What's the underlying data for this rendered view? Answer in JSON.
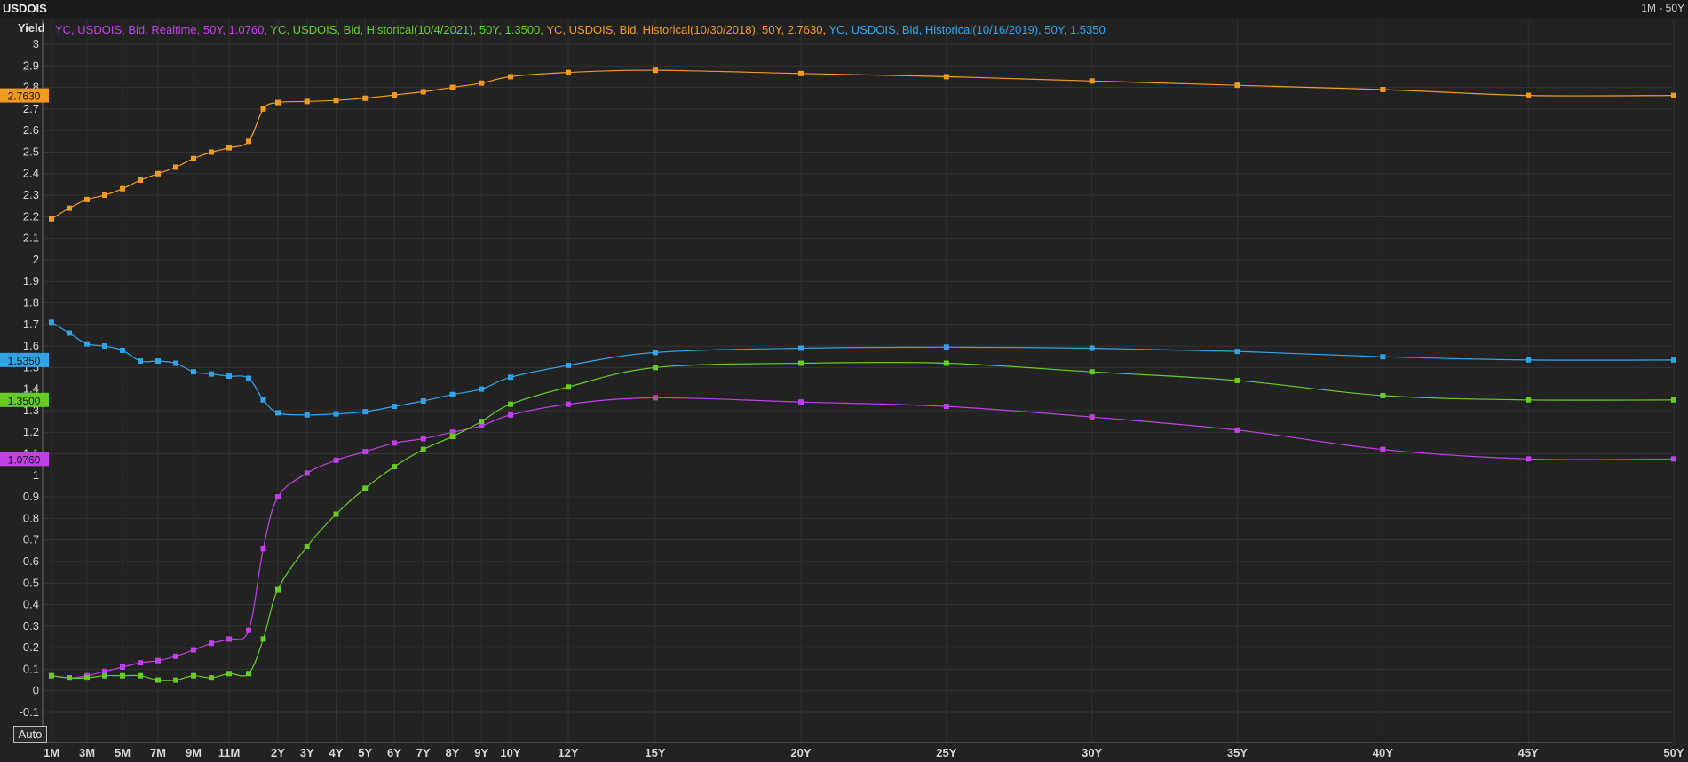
{
  "window": {
    "title": "USDOIS",
    "range_label": "1M - 50Y"
  },
  "controls": {
    "auto_label": "Auto"
  },
  "chart_data": {
    "type": "line",
    "ylabel": "Yield",
    "ylim": [
      -0.1,
      3.0
    ],
    "y_ticks": [
      3,
      2.9,
      2.8,
      2.7,
      2.6,
      2.5,
      2.4,
      2.3,
      2.2,
      2.1,
      2,
      1.9,
      1.8,
      1.7,
      1.6,
      1.5,
      1.4,
      1.3,
      1.2,
      1.1,
      1,
      0.9,
      0.8,
      0.7,
      0.6,
      0.5,
      0.4,
      0.3,
      0.2,
      0.1,
      0,
      -0.1
    ],
    "y_tick_labels": [
      "3",
      "2.9",
      "2.8",
      "2.7",
      "2.6",
      "2.5",
      "2.4",
      "2.3",
      "2.2",
      "2.1",
      "2",
      "1.9",
      "1.8",
      "1.7",
      "1.6",
      "1.5",
      "1.4",
      "1.3",
      "1.2",
      "1.1",
      "1",
      "0.9",
      "0.8",
      "0.7",
      "0.6",
      "0.5",
      "0.4",
      "0.3",
      "0.2",
      "0.1",
      "0",
      "-0.1"
    ],
    "grid": true,
    "x_tick_labels": [
      "1M",
      "3M",
      "5M",
      "7M",
      "9M",
      "11M",
      "2Y",
      "3Y",
      "4Y",
      "5Y",
      "6Y",
      "7Y",
      "8Y",
      "9Y",
      "10Y",
      "12Y",
      "15Y",
      "20Y",
      "25Y",
      "30Y",
      "35Y",
      "40Y",
      "45Y",
      "50Y"
    ],
    "x_tick_years": [
      0.0833,
      0.25,
      0.4167,
      0.5833,
      0.75,
      0.9167,
      2,
      3,
      4,
      5,
      6,
      7,
      8,
      9,
      10,
      12,
      15,
      20,
      25,
      30,
      35,
      40,
      45,
      50
    ],
    "x_points": [
      0.0833,
      0.1667,
      0.25,
      0.3333,
      0.4167,
      0.5,
      0.5833,
      0.6667,
      0.75,
      0.8333,
      0.9167,
      1,
      1.5,
      2,
      3,
      4,
      5,
      6,
      7,
      8,
      9,
      10,
      12,
      15,
      20,
      25,
      30,
      35,
      40,
      45,
      50
    ],
    "series": [
      {
        "name": "YC, USDOIS, Bid, Realtime, 50Y, 1.0760",
        "color": "#c040e8",
        "last_label": "1.0760",
        "values": [
          0.07,
          0.06,
          0.07,
          0.09,
          0.11,
          0.13,
          0.14,
          0.16,
          0.19,
          0.22,
          0.24,
          0.28,
          0.66,
          0.9,
          1.01,
          1.07,
          1.11,
          1.15,
          1.17,
          1.2,
          1.23,
          1.28,
          1.33,
          1.36,
          1.34,
          1.32,
          1.27,
          1.21,
          1.12,
          1.076,
          1.076
        ]
      },
      {
        "name": "YC, USDOIS, Bid, Historical(10/4/2021), 50Y, 1.3500",
        "color": "#66cc22",
        "last_label": "1.3500",
        "values": [
          0.07,
          0.06,
          0.06,
          0.07,
          0.07,
          0.07,
          0.05,
          0.05,
          0.07,
          0.06,
          0.08,
          0.08,
          0.24,
          0.47,
          0.67,
          0.82,
          0.94,
          1.04,
          1.12,
          1.18,
          1.25,
          1.33,
          1.41,
          1.5,
          1.52,
          1.52,
          1.48,
          1.44,
          1.37,
          1.35,
          1.35
        ]
      },
      {
        "name": "YC, USDOIS, Bid, Historical(10/30/2018), 50Y, 2.7630",
        "color": "#f09a20",
        "last_label": "2.7630",
        "values": [
          2.19,
          2.24,
          2.28,
          2.3,
          2.33,
          2.37,
          2.4,
          2.43,
          2.47,
          2.5,
          2.52,
          2.55,
          2.7,
          2.73,
          2.735,
          2.74,
          2.75,
          2.765,
          2.78,
          2.8,
          2.82,
          2.85,
          2.87,
          2.88,
          2.865,
          2.85,
          2.83,
          2.81,
          2.79,
          2.763,
          2.763
        ]
      },
      {
        "name": "YC, USDOIS, Bid, Historical(10/16/2019), 50Y, 1.5350",
        "color": "#2fa4e8",
        "last_label": "1.5350",
        "values": [
          1.71,
          1.66,
          1.61,
          1.6,
          1.58,
          1.53,
          1.53,
          1.52,
          1.48,
          1.47,
          1.46,
          1.45,
          1.35,
          1.29,
          1.28,
          1.285,
          1.295,
          1.32,
          1.345,
          1.375,
          1.4,
          1.455,
          1.51,
          1.57,
          1.59,
          1.595,
          1.59,
          1.575,
          1.55,
          1.535,
          1.535
        ]
      }
    ]
  }
}
